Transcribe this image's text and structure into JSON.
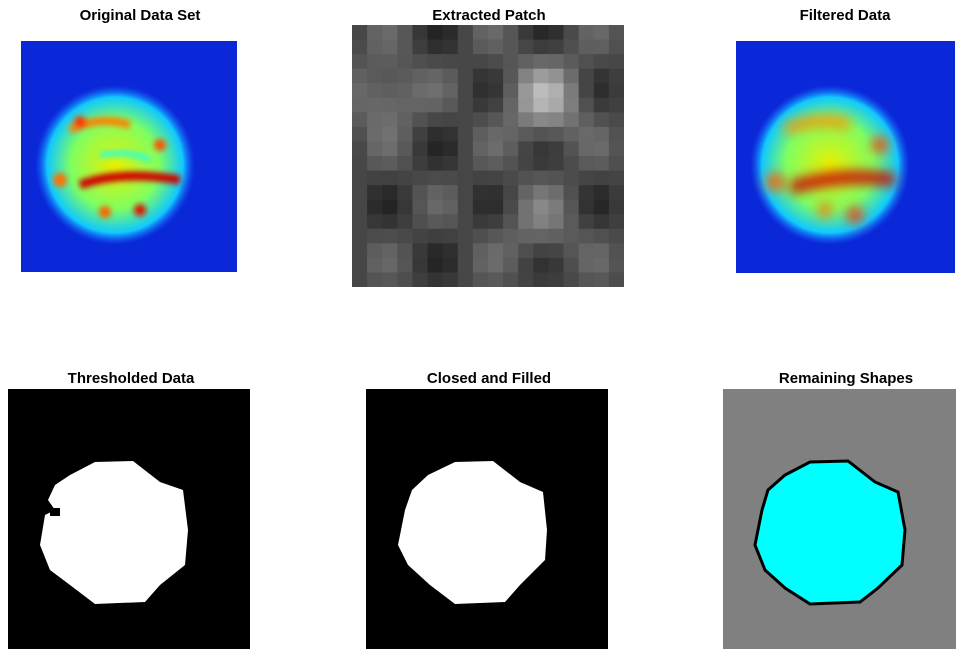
{
  "panels": [
    {
      "title": "Original Data Set"
    },
    {
      "title": "Extracted Patch"
    },
    {
      "title": "Filtered Data"
    },
    {
      "title": "Thresholded Data"
    },
    {
      "title": "Closed and Filled"
    },
    {
      "title": "Remaining Shapes"
    }
  ]
}
